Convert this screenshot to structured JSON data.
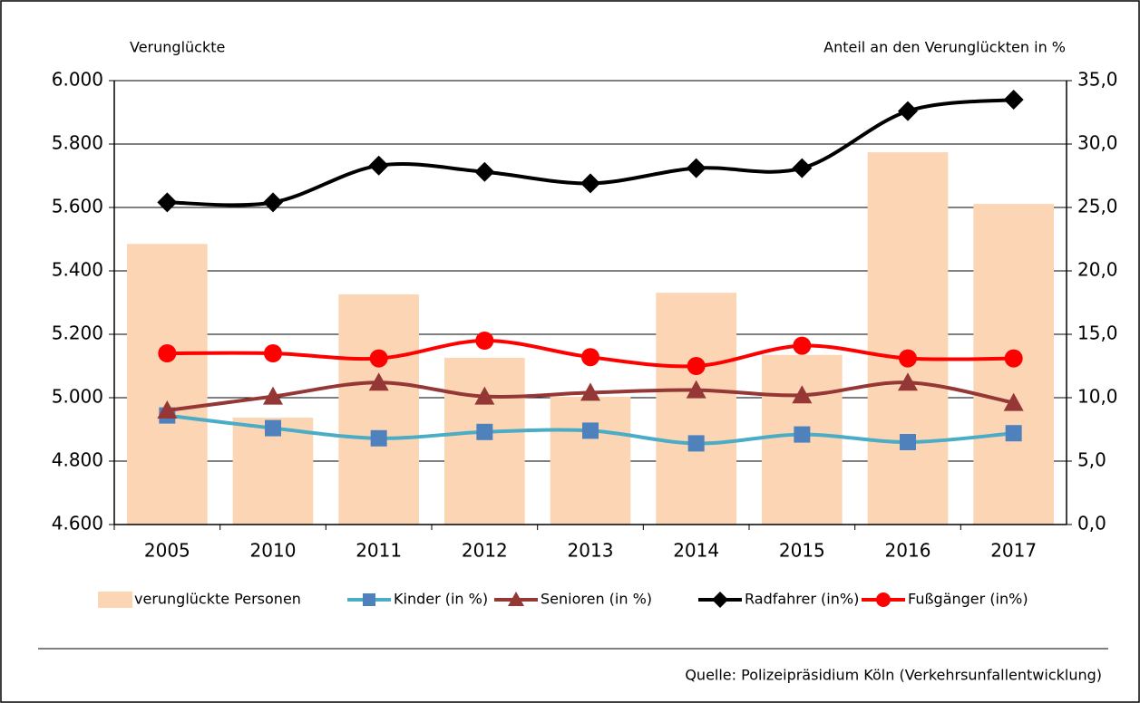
{
  "chart_data": {
    "type": "bar",
    "y_label": "Verunglückte",
    "y2_label": "Anteil an den Verunglückten in %",
    "source": "Quelle: Polizeipräsidium Köln (Verkehrsunfallentwicklung)",
    "categories": [
      "2005",
      "2010",
      "2011",
      "2012",
      "2013",
      "2014",
      "2015",
      "2016",
      "2017"
    ],
    "series": [
      {
        "name": "verunglückte Personen",
        "type": "bar",
        "axis": "y",
        "color": "#fcd5b5",
        "values": [
          5485,
          4937,
          5326,
          5126,
          5003,
          5331,
          5135,
          5774,
          5611
        ]
      },
      {
        "name": "Kinder (in %)",
        "type": "line",
        "axis": "y2",
        "color": "#4bacc6",
        "marker": "square",
        "marker_color": "#4f81bd",
        "values": [
          8.6,
          7.6,
          6.8,
          7.3,
          7.4,
          6.4,
          7.1,
          6.5,
          7.2
        ]
      },
      {
        "name": "Senioren (in %)",
        "type": "line",
        "axis": "y2",
        "color": "#953735",
        "marker": "triangle",
        "marker_color": "#953735",
        "values": [
          9.0,
          10.1,
          11.2,
          10.1,
          10.4,
          10.6,
          10.2,
          11.2,
          9.6
        ]
      },
      {
        "name": "Radfahrer (in%)",
        "type": "line",
        "axis": "y2",
        "color": "#000000",
        "marker": "diamond",
        "marker_color": "#000000",
        "values": [
          25.4,
          25.4,
          28.3,
          27.8,
          26.9,
          28.1,
          28.1,
          32.6,
          33.5
        ]
      },
      {
        "name": "Fußgänger (in%)",
        "type": "line",
        "axis": "y2",
        "color": "#ff0000",
        "marker": "circle",
        "marker_color": "#ff0000",
        "values": [
          13.5,
          13.5,
          13.1,
          14.5,
          13.2,
          12.5,
          14.1,
          13.1,
          13.1
        ]
      }
    ],
    "ylim": [
      4600,
      6000
    ],
    "yticks": [
      {
        "value": 4600,
        "label": "4.600"
      },
      {
        "value": 4800,
        "label": "4.800"
      },
      {
        "value": 5000,
        "label": "5.000"
      },
      {
        "value": 5200,
        "label": "5.200"
      },
      {
        "value": 5400,
        "label": "5.400"
      },
      {
        "value": 5600,
        "label": "5.600"
      },
      {
        "value": 5800,
        "label": "5.800"
      },
      {
        "value": 6000,
        "label": "6.000"
      }
    ],
    "y2lim": [
      0,
      35
    ],
    "y2ticks": [
      {
        "value": 0,
        "label": "0,0"
      },
      {
        "value": 5,
        "label": "5,0"
      },
      {
        "value": 10,
        "label": "10,0"
      },
      {
        "value": 15,
        "label": "15,0"
      },
      {
        "value": 20,
        "label": "20,0"
      },
      {
        "value": 25,
        "label": "25,0"
      },
      {
        "value": 30,
        "label": "30,0"
      },
      {
        "value": 35,
        "label": "35,0"
      }
    ],
    "grid": true,
    "legend": "bottom"
  }
}
